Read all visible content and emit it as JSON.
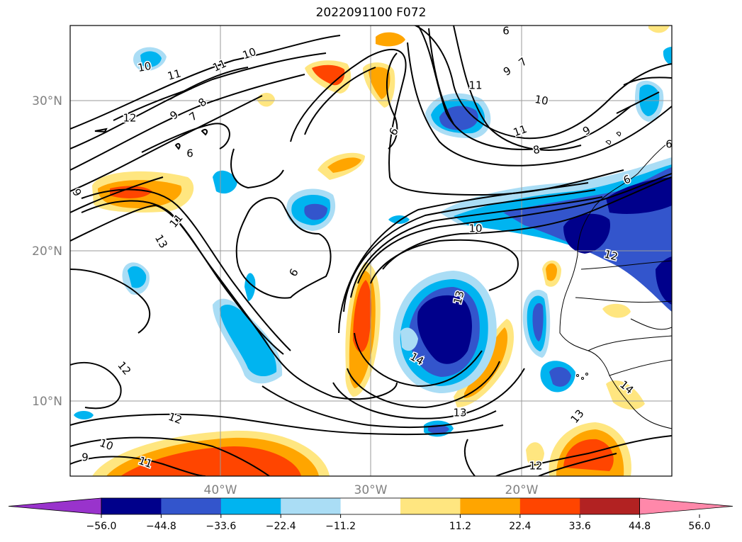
{
  "title": "2022091100 F072",
  "lat_labels": [
    "30°N",
    "20°N",
    "10°N"
  ],
  "lon_labels": [
    "40°W",
    "30°W",
    "20°W"
  ],
  "colorbar": {
    "tick_labels": [
      "−56.0",
      "−44.8",
      "−33.6",
      "−22.4",
      "−11.2",
      "11.2",
      "22.4",
      "33.6",
      "44.8",
      "56.0"
    ],
    "colors": [
      "#9933cc",
      "#00008b",
      "#3355cc",
      "#00b4f0",
      "#aaddf5",
      "#ffffff",
      "#ffe680",
      "#ffa500",
      "#ff4500",
      "#b22222",
      "#ff88aa"
    ]
  },
  "contour_labels": [
    {
      "label": "10"
    },
    {
      "label": "11"
    },
    {
      "label": "11"
    },
    {
      "label": "10"
    },
    {
      "label": "12"
    },
    {
      "label": "9"
    },
    {
      "label": "7"
    },
    {
      "label": "8"
    },
    {
      "label": "6"
    },
    {
      "label": "6"
    },
    {
      "label": "11"
    },
    {
      "label": "9"
    },
    {
      "label": "7"
    },
    {
      "label": "10"
    },
    {
      "label": "11"
    },
    {
      "label": "8"
    },
    {
      "label": "9"
    },
    {
      "label": "6"
    },
    {
      "label": "11"
    },
    {
      "label": "13"
    },
    {
      "label": "10"
    },
    {
      "label": "12"
    },
    {
      "label": "6"
    },
    {
      "label": "13"
    },
    {
      "label": "14"
    },
    {
      "label": "12"
    },
    {
      "label": "12"
    },
    {
      "label": "10"
    },
    {
      "label": "11"
    },
    {
      "label": "9"
    },
    {
      "label": "13"
    },
    {
      "label": "12"
    },
    {
      "label": "13"
    },
    {
      "label": "14"
    },
    {
      "label": "6"
    },
    {
      "label": "6"
    },
    {
      "label": "9"
    }
  ]
}
